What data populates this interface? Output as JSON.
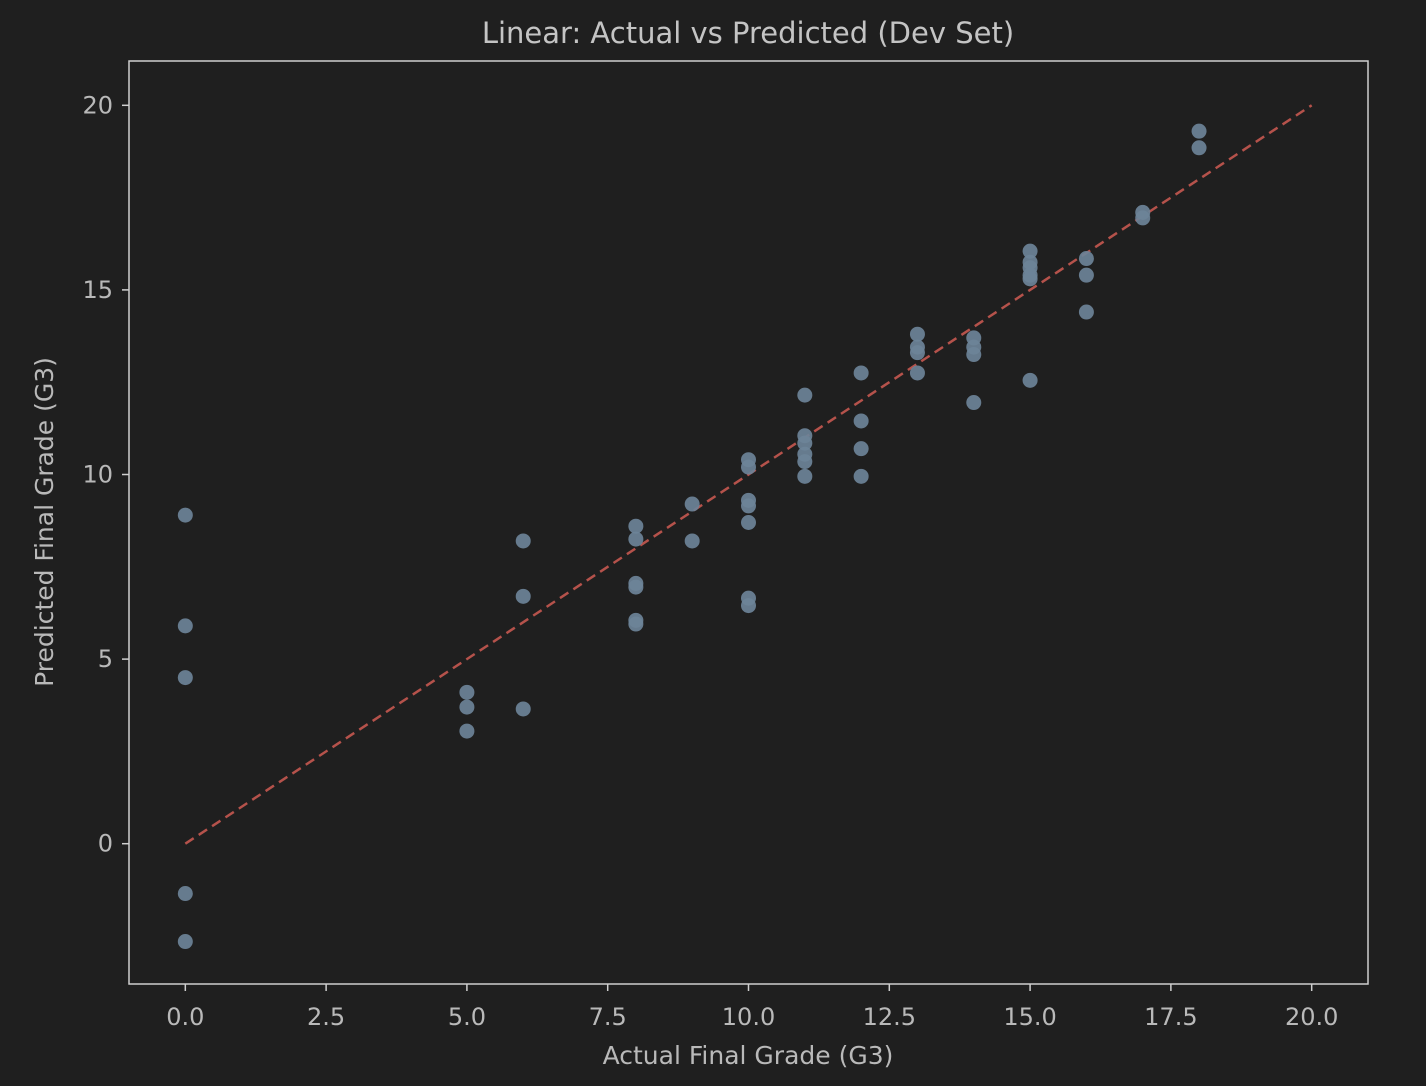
{
  "chart_data": {
    "type": "scatter",
    "title": "Linear: Actual vs Predicted (Dev Set)",
    "xlabel": "Actual Final Grade (G3)",
    "ylabel": "Predicted Final Grade (G3)",
    "xlim": [
      -1,
      21
    ],
    "ylim": [
      -3.8,
      21.2
    ],
    "xticks": [
      0.0,
      2.5,
      5.0,
      7.5,
      10.0,
      12.5,
      15.0,
      17.5,
      20.0
    ],
    "xtick_labels": [
      "0.0",
      "2.5",
      "5.0",
      "7.5",
      "10.0",
      "12.5",
      "15.0",
      "17.5",
      "20.0"
    ],
    "yticks": [
      0,
      5,
      10,
      15,
      20
    ],
    "ytick_labels": [
      "0",
      "5",
      "10",
      "15",
      "20"
    ],
    "grid": false,
    "reference_line": {
      "from": [
        0,
        0
      ],
      "to": [
        20,
        20
      ],
      "style": "dashed",
      "color": "#b5524b"
    },
    "point_color": "#6c8398",
    "colors": {
      "background": "#1f1f1f",
      "axes": "#cfcfcf",
      "text": "#b9b9b9"
    },
    "points": [
      {
        "x": 0,
        "y": 8.9
      },
      {
        "x": 0,
        "y": 5.9
      },
      {
        "x": 0,
        "y": 4.5
      },
      {
        "x": 0,
        "y": -1.35
      },
      {
        "x": 0,
        "y": -2.65
      },
      {
        "x": 5,
        "y": 4.1
      },
      {
        "x": 5,
        "y": 3.7
      },
      {
        "x": 5,
        "y": 3.05
      },
      {
        "x": 6,
        "y": 8.2
      },
      {
        "x": 6,
        "y": 6.7
      },
      {
        "x": 6,
        "y": 3.65
      },
      {
        "x": 8,
        "y": 8.6
      },
      {
        "x": 8,
        "y": 8.25
      },
      {
        "x": 8,
        "y": 7.05
      },
      {
        "x": 8,
        "y": 6.95
      },
      {
        "x": 8,
        "y": 6.05
      },
      {
        "x": 8,
        "y": 5.95
      },
      {
        "x": 9,
        "y": 9.2
      },
      {
        "x": 9,
        "y": 8.2
      },
      {
        "x": 10,
        "y": 10.4
      },
      {
        "x": 10,
        "y": 10.2
      },
      {
        "x": 10,
        "y": 9.3
      },
      {
        "x": 10,
        "y": 9.15
      },
      {
        "x": 10,
        "y": 8.7
      },
      {
        "x": 10,
        "y": 6.65
      },
      {
        "x": 10,
        "y": 6.45
      },
      {
        "x": 11,
        "y": 12.15
      },
      {
        "x": 11,
        "y": 11.05
      },
      {
        "x": 11,
        "y": 10.85
      },
      {
        "x": 11,
        "y": 10.55
      },
      {
        "x": 11,
        "y": 10.35
      },
      {
        "x": 11,
        "y": 9.95
      },
      {
        "x": 12,
        "y": 12.75
      },
      {
        "x": 12,
        "y": 11.45
      },
      {
        "x": 12,
        "y": 10.7
      },
      {
        "x": 12,
        "y": 9.95
      },
      {
        "x": 13,
        "y": 13.8
      },
      {
        "x": 13,
        "y": 13.45
      },
      {
        "x": 13,
        "y": 13.3
      },
      {
        "x": 13,
        "y": 12.75
      },
      {
        "x": 14,
        "y": 13.7
      },
      {
        "x": 14,
        "y": 13.45
      },
      {
        "x": 14,
        "y": 13.25
      },
      {
        "x": 14,
        "y": 11.95
      },
      {
        "x": 15,
        "y": 16.05
      },
      {
        "x": 15,
        "y": 15.75
      },
      {
        "x": 15,
        "y": 15.6
      },
      {
        "x": 15,
        "y": 15.4
      },
      {
        "x": 15,
        "y": 15.3
      },
      {
        "x": 15,
        "y": 12.55
      },
      {
        "x": 16,
        "y": 15.85
      },
      {
        "x": 16,
        "y": 15.4
      },
      {
        "x": 16,
        "y": 14.4
      },
      {
        "x": 17,
        "y": 17.1
      },
      {
        "x": 17,
        "y": 16.95
      },
      {
        "x": 18,
        "y": 19.3
      },
      {
        "x": 18,
        "y": 18.85
      }
    ]
  }
}
